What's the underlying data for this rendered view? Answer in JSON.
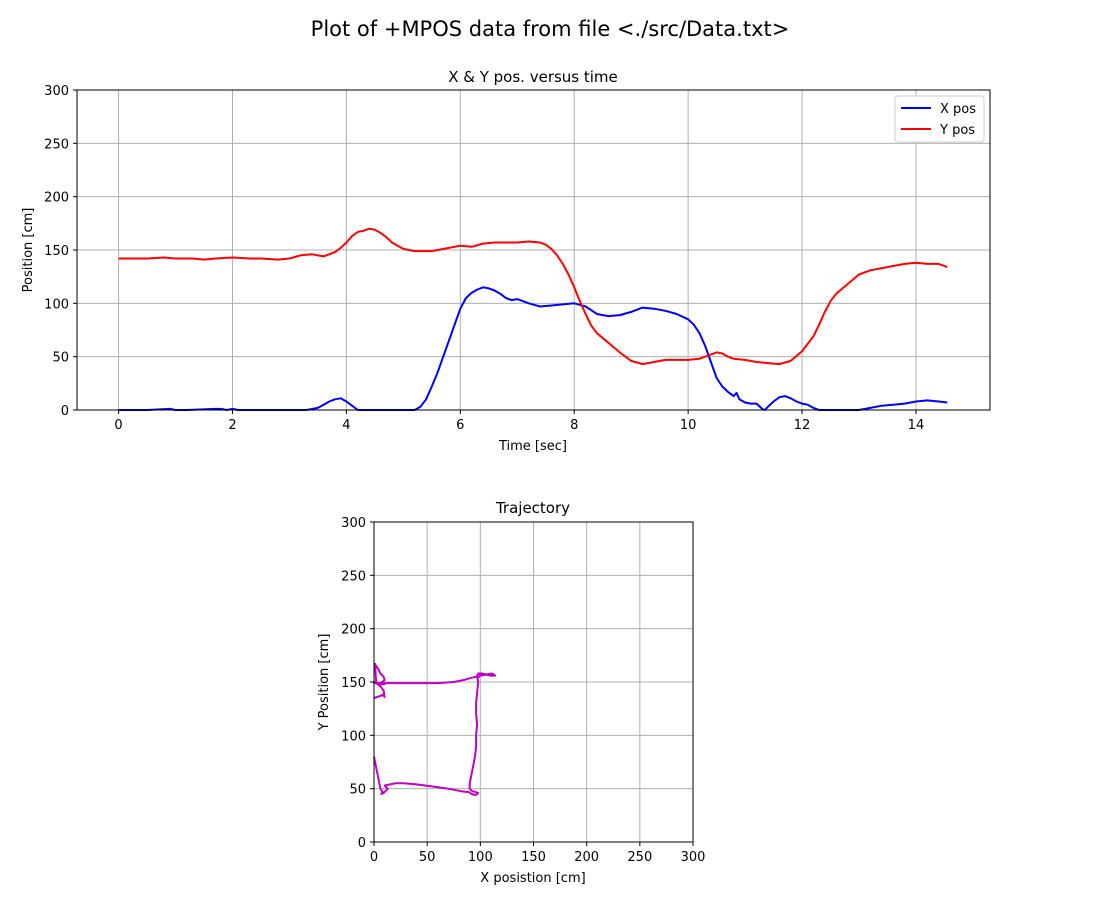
{
  "figure_title": "Plot of +MPOS data from file <./src/Data.txt>",
  "colors": {
    "x_pos": "#0000ff",
    "y_pos": "#ff0000",
    "trajectory": "#bf00bf",
    "grid": "#b0b0b0"
  },
  "chart_data": [
    {
      "type": "line",
      "title": "X & Y pos. versus time",
      "xlabel": "Time [sec]",
      "ylabel": "Position [cm]",
      "xlim": [
        -0.73,
        15.3
      ],
      "ylim": [
        0,
        300
      ],
      "xticks": [
        0,
        2,
        4,
        6,
        8,
        10,
        12,
        14
      ],
      "yticks": [
        0,
        50,
        100,
        150,
        200,
        250,
        300
      ],
      "grid": true,
      "legend_position": "top-right",
      "series": [
        {
          "name": "X pos",
          "color": "#0000ff",
          "x": [
            0,
            0.5,
            0.9,
            1.0,
            1.2,
            1.7,
            1.8,
            1.9,
            2.0,
            2.1,
            2.5,
            3.0,
            3.3,
            3.5,
            3.6,
            3.7,
            3.8,
            3.9,
            4.0,
            4.1,
            4.2,
            4.5,
            5.0,
            5.2,
            5.3,
            5.4,
            5.5,
            5.6,
            5.7,
            5.8,
            5.9,
            6.0,
            6.1,
            6.2,
            6.3,
            6.4,
            6.5,
            6.6,
            6.7,
            6.8,
            6.9,
            7.0,
            7.2,
            7.4,
            7.6,
            7.8,
            8.0,
            8.2,
            8.4,
            8.6,
            8.8,
            9.0,
            9.2,
            9.4,
            9.6,
            9.8,
            10.0,
            10.1,
            10.2,
            10.3,
            10.4,
            10.5,
            10.6,
            10.7,
            10.8,
            10.85,
            10.9,
            11.0,
            11.1,
            11.2,
            11.3,
            11.35,
            11.4,
            11.5,
            11.6,
            11.7,
            11.8,
            11.9,
            12.0,
            12.1,
            12.2,
            12.3,
            12.5,
            13.0,
            13.2,
            13.4,
            13.6,
            13.8,
            14.0,
            14.2,
            14.4,
            14.55
          ],
          "y": [
            0,
            0,
            1,
            0,
            0,
            1,
            1,
            0,
            1,
            0,
            0,
            0,
            0,
            2,
            5,
            8,
            10,
            11,
            8,
            4,
            0,
            0,
            0,
            0,
            3,
            10,
            22,
            35,
            50,
            65,
            80,
            95,
            105,
            110,
            113,
            115,
            114,
            112,
            109,
            105,
            103,
            104,
            100,
            97,
            98,
            99,
            100,
            97,
            90,
            88,
            89,
            92,
            96,
            95,
            93,
            90,
            85,
            80,
            72,
            60,
            45,
            30,
            22,
            17,
            13,
            16,
            10,
            7,
            6,
            6,
            1,
            0,
            3,
            8,
            12,
            13,
            11,
            8,
            6,
            5,
            2,
            0,
            0,
            0,
            2,
            4,
            5,
            6,
            8,
            9,
            8,
            7
          ]
        },
        {
          "name": "Y pos",
          "color": "#ff0000",
          "x": [
            0,
            0.5,
            0.8,
            1.0,
            1.3,
            1.5,
            1.7,
            2.0,
            2.3,
            2.5,
            2.8,
            3.0,
            3.2,
            3.4,
            3.6,
            3.8,
            3.9,
            4.0,
            4.1,
            4.2,
            4.3,
            4.4,
            4.5,
            4.6,
            4.7,
            4.8,
            4.9,
            5.0,
            5.2,
            5.5,
            5.8,
            6.0,
            6.2,
            6.4,
            6.6,
            6.8,
            7.0,
            7.2,
            7.4,
            7.5,
            7.6,
            7.7,
            7.8,
            7.9,
            8.0,
            8.1,
            8.2,
            8.3,
            8.4,
            8.6,
            8.8,
            9.0,
            9.2,
            9.4,
            9.6,
            9.8,
            10.0,
            10.2,
            10.4,
            10.5,
            10.6,
            10.7,
            10.8,
            11.0,
            11.2,
            11.4,
            11.6,
            11.8,
            12.0,
            12.1,
            12.2,
            12.3,
            12.4,
            12.5,
            12.6,
            12.8,
            13.0,
            13.2,
            13.4,
            13.6,
            13.8,
            14.0,
            14.2,
            14.4,
            14.55
          ],
          "y": [
            142,
            142,
            143,
            142,
            142,
            141,
            142,
            143,
            142,
            142,
            141,
            142,
            145,
            146,
            144,
            148,
            152,
            157,
            163,
            167,
            168,
            170,
            169,
            166,
            162,
            157,
            154,
            151,
            149,
            149,
            152,
            154,
            153,
            156,
            157,
            157,
            157,
            158,
            157,
            155,
            151,
            145,
            137,
            127,
            115,
            102,
            90,
            79,
            72,
            63,
            54,
            46,
            43,
            45,
            47,
            47,
            47,
            48,
            52,
            54,
            53,
            50,
            48,
            47,
            45,
            44,
            43,
            46,
            55,
            62,
            69,
            80,
            92,
            102,
            109,
            118,
            127,
            131,
            133,
            135,
            137,
            138,
            137,
            137,
            134
          ]
        }
      ]
    },
    {
      "type": "line",
      "title": "Trajectory",
      "xlabel": "X posistion [cm]",
      "ylabel": "Y Position [cm]",
      "xlim": [
        0,
        300
      ],
      "ylim": [
        0,
        300
      ],
      "xticks": [
        0,
        50,
        100,
        150,
        200,
        250,
        300
      ],
      "yticks": [
        0,
        50,
        100,
        150,
        200,
        250,
        300
      ],
      "grid": true,
      "series": [
        {
          "color": "#bf00bf",
          "x": [
            0,
            3,
            6,
            8,
            9,
            10,
            9,
            6,
            3,
            1,
            0,
            2,
            5,
            8,
            10,
            9,
            6,
            4,
            2,
            1,
            1,
            2,
            5,
            9,
            10,
            9,
            15,
            30,
            45,
            60,
            75,
            85,
            88,
            92,
            97,
            99,
            100,
            101,
            105,
            110,
            114,
            111,
            106,
            102,
            98,
            97,
            98,
            97,
            96,
            96,
            97,
            96,
            96,
            95,
            93,
            91,
            90,
            90,
            92,
            95,
            98,
            97,
            95,
            92,
            89,
            86,
            80,
            70,
            55,
            40,
            28,
            20,
            15,
            10,
            13,
            11,
            9,
            7,
            8,
            6,
            5,
            4,
            2,
            0
          ],
          "y": [
            135,
            136,
            137,
            138,
            137,
            136,
            142,
            146,
            148,
            150,
            149,
            149,
            149,
            150,
            152,
            155,
            158,
            162,
            165,
            167,
            166,
            150,
            148,
            148,
            148,
            149,
            149,
            149,
            149,
            149,
            150,
            152,
            153,
            154,
            155,
            155,
            157,
            156,
            157,
            156,
            156,
            158,
            157,
            158,
            158,
            156,
            150,
            140,
            130,
            120,
            110,
            100,
            90,
            80,
            70,
            60,
            55,
            50,
            48,
            47,
            46,
            45,
            44,
            45,
            47,
            47,
            48,
            50,
            52,
            54,
            55,
            55,
            54,
            53,
            50,
            48,
            46,
            45,
            47,
            50,
            55,
            60,
            70,
            80
          ]
        }
      ]
    }
  ]
}
